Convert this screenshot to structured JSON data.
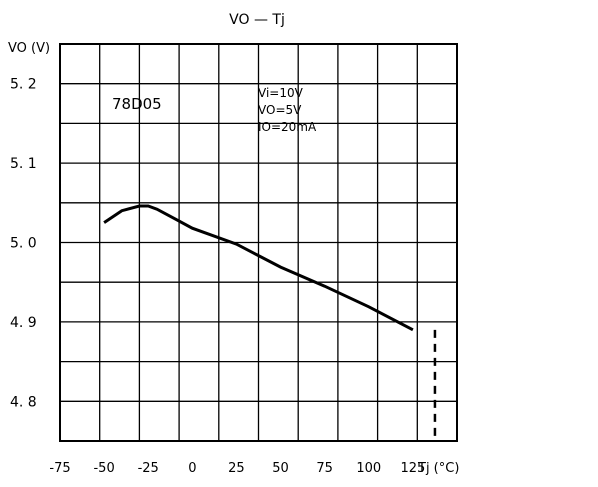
{
  "chart_data": {
    "type": "line",
    "title": "VO — Tj",
    "ylabel": "VO (V)",
    "xlabel": "Tj (°C)",
    "device": "78D05",
    "conditions": [
      "Vi=10V",
      "VO=5V",
      "IO=20mA"
    ],
    "x_ticks": [
      "-75",
      "-50",
      "-25",
      "0",
      "25",
      "50",
      "75",
      "100",
      "125"
    ],
    "y_ticks": [
      "5. 2",
      "5. 1",
      "5. 0",
      "4. 9",
      "4. 8"
    ],
    "xlim": [
      -75,
      150
    ],
    "ylim": [
      4.75,
      5.25
    ],
    "grid": true,
    "series": [
      {
        "x": [
          -50,
          -40,
          -30,
          -25,
          -20,
          -10,
          0,
          25,
          50,
          75,
          100,
          125
        ],
        "y": [
          5.025,
          5.04,
          5.046,
          5.046,
          5.042,
          5.03,
          5.018,
          4.998,
          4.969,
          4.945,
          4.919,
          4.89
        ]
      }
    ],
    "dashed_marker": {
      "x": 137.5,
      "y_range": [
        4.75,
        4.89
      ]
    }
  }
}
